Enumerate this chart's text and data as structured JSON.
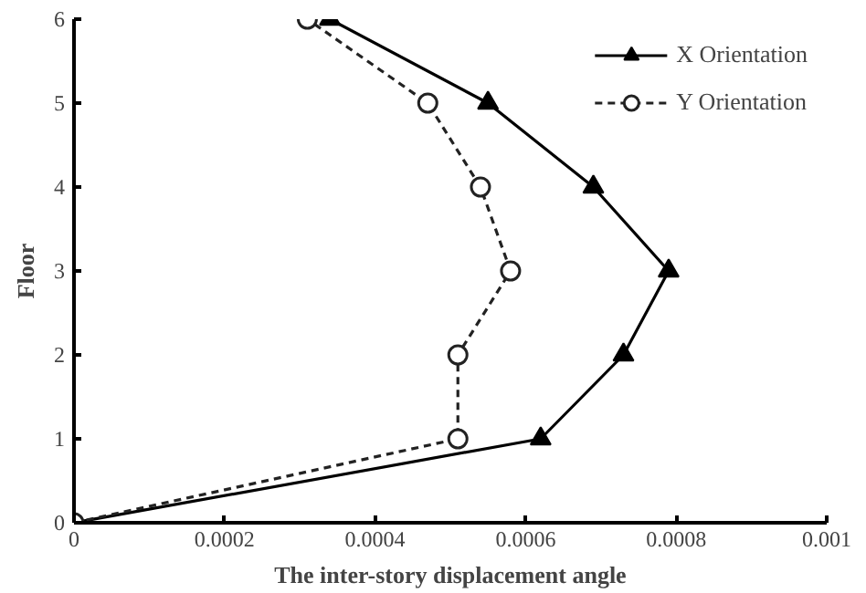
{
  "chart_data": {
    "type": "line",
    "xlabel": "The inter-story displacement angle",
    "ylabel": "Floor",
    "xlim": [
      0,
      0.001
    ],
    "ylim": [
      0,
      6
    ],
    "xticks": [
      0,
      0.0002,
      0.0004,
      0.0006,
      0.0008,
      0.001
    ],
    "yticks": [
      0,
      1,
      2,
      3,
      4,
      5,
      6
    ],
    "grid": false,
    "legend": "top right",
    "series": [
      {
        "name": "X Orientation",
        "color": "#000000",
        "marker": "triangle",
        "line_style": "solid",
        "x": [
          0,
          0.00062,
          0.00073,
          0.00079,
          0.00069,
          0.00055,
          0.00034
        ],
        "values": [
          0,
          1,
          2,
          3,
          4,
          5,
          6
        ]
      },
      {
        "name": "Y Orientation",
        "color": "#222222",
        "marker": "circle",
        "line_style": "dashed",
        "x": [
          0,
          0.00051,
          0.00051,
          0.00058,
          0.00054,
          0.00047,
          0.00031
        ],
        "values": [
          0,
          1,
          2,
          3,
          4,
          5,
          6
        ]
      }
    ]
  }
}
